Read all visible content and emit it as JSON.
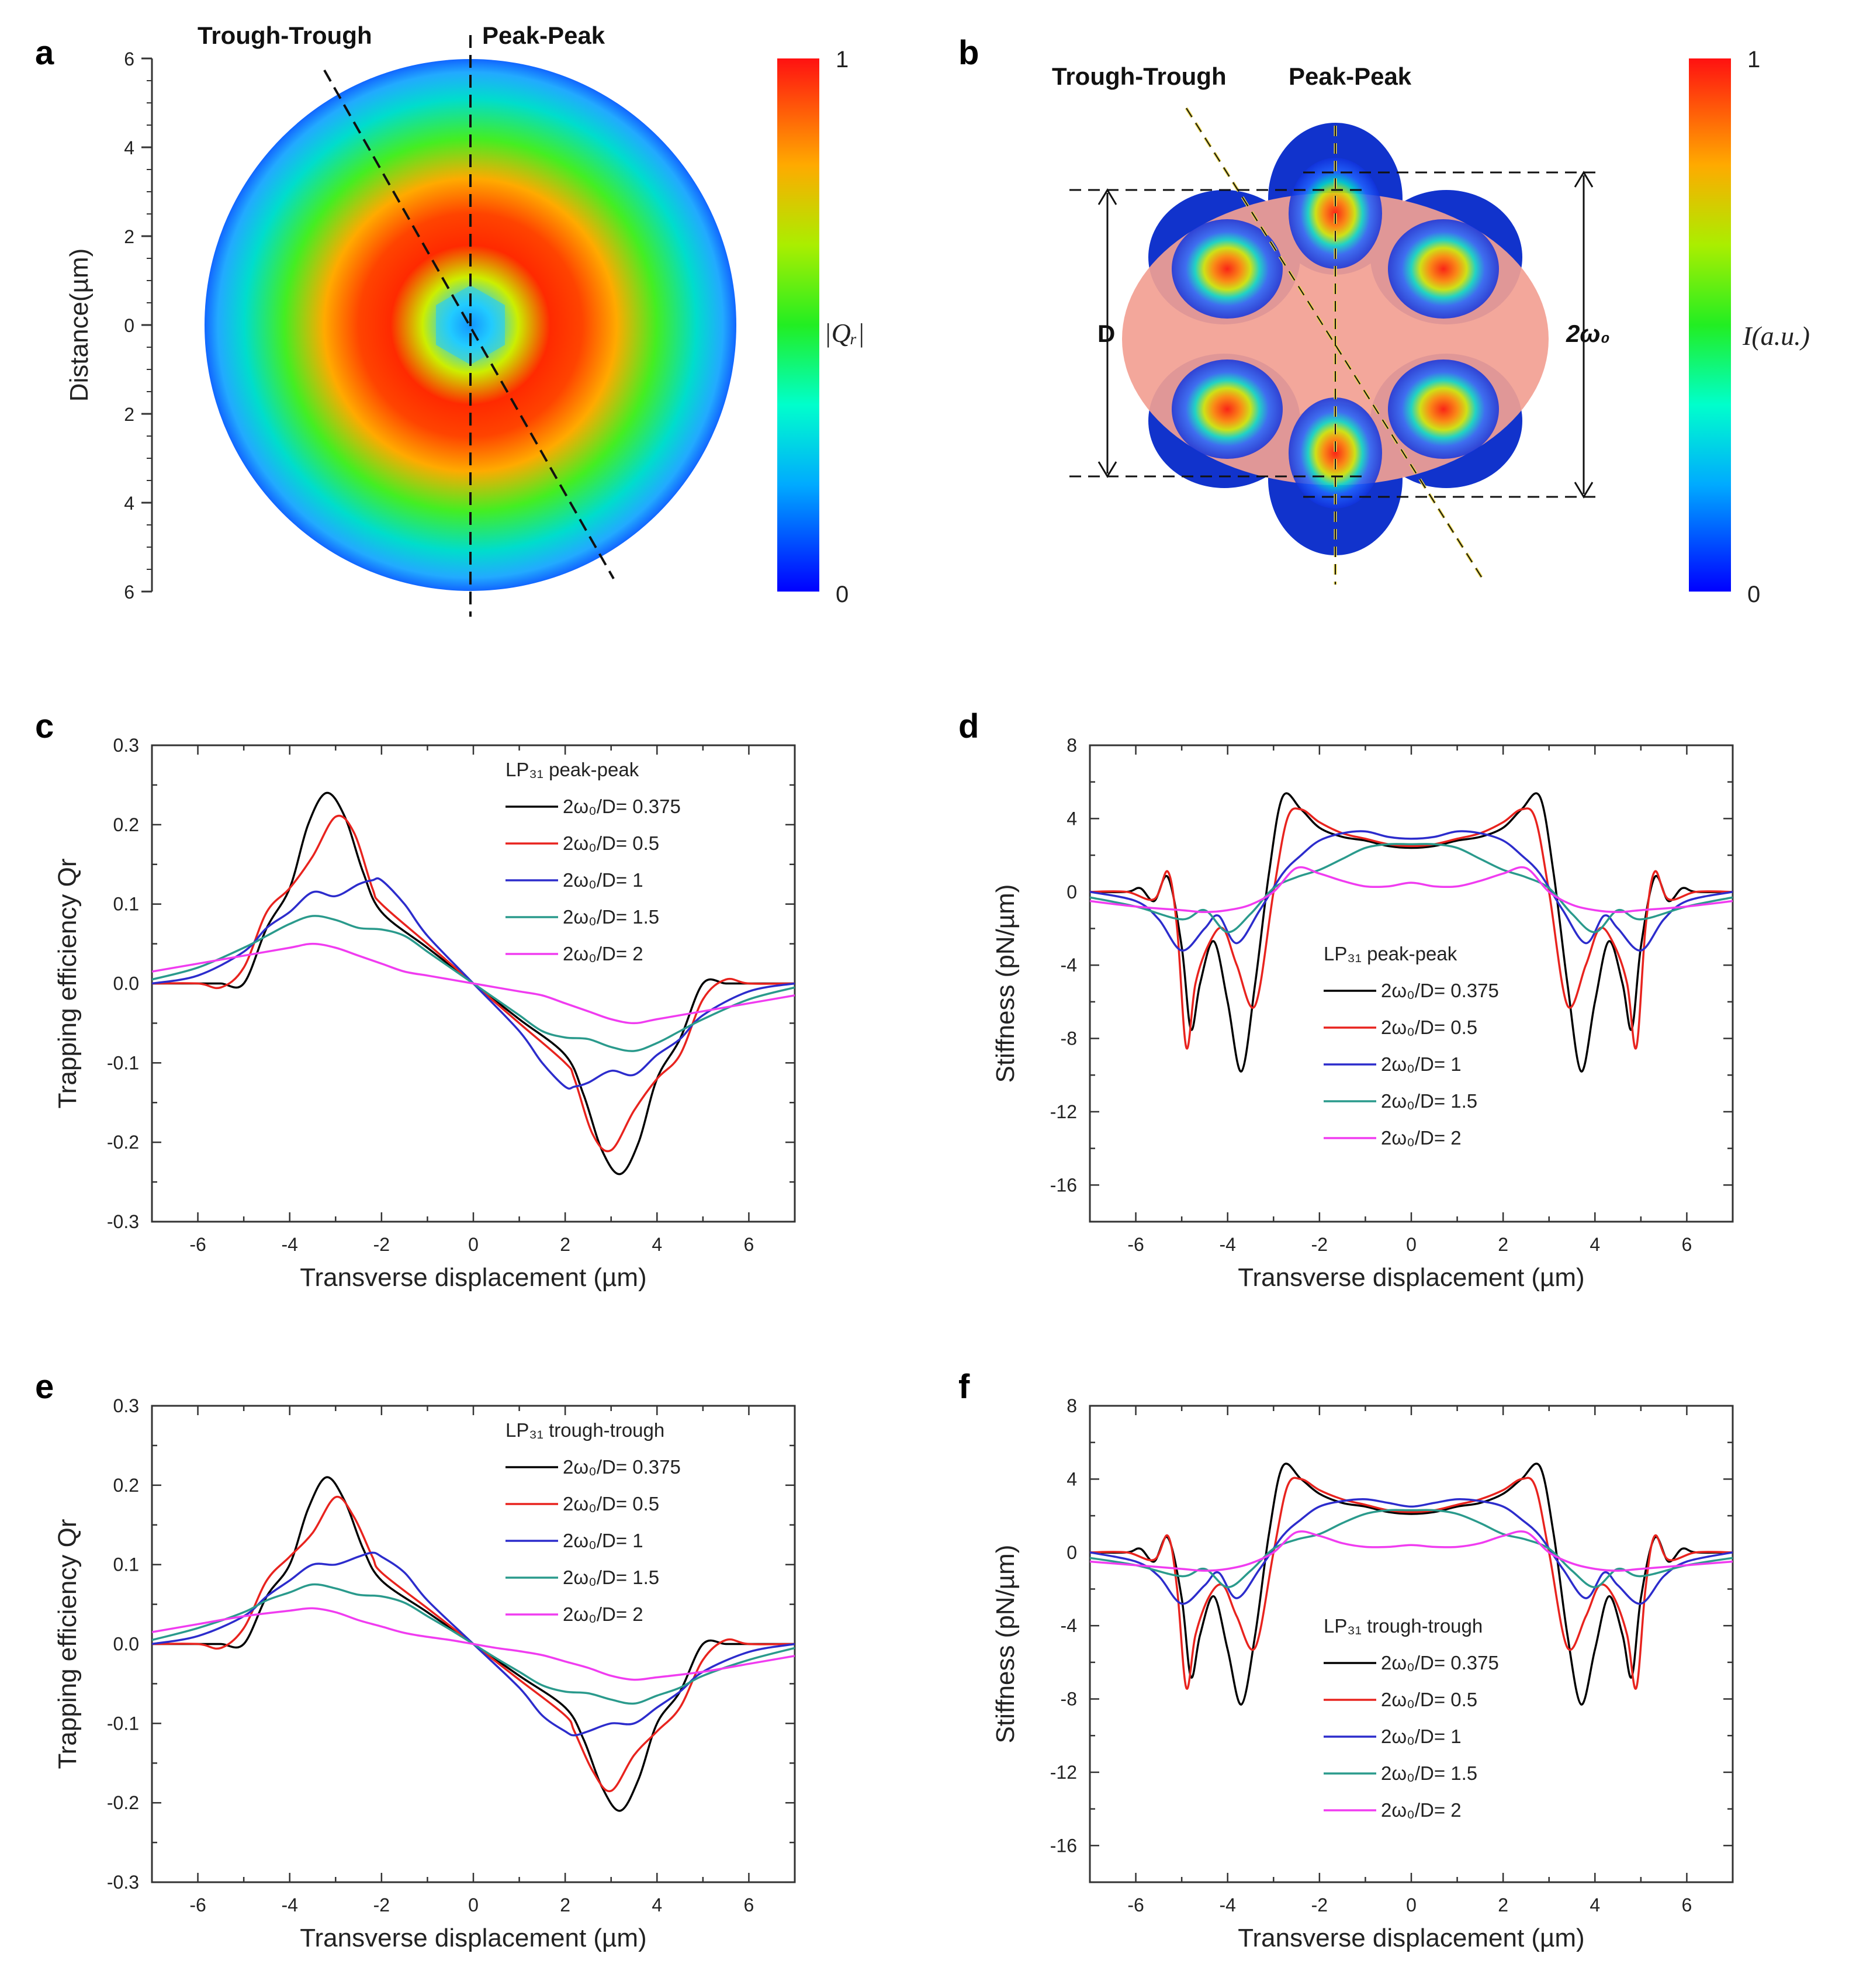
{
  "panels": {
    "a": {
      "letter": "a",
      "label_trough": "Trough-Trough",
      "label_peak": "Peak-Peak",
      "ylabel": "Distance(µm)",
      "yticks": [
        "6",
        "4",
        "2",
        "0",
        "2",
        "4",
        "6"
      ],
      "colorbar_label": "|Qᵣ|",
      "colorbar_max": "1",
      "colorbar_min": "0"
    },
    "b": {
      "letter": "b",
      "label_trough": "Trough-Trough",
      "label_peak": "Peak-Peak",
      "label_d": "D",
      "label_w": "2ω₀",
      "colorbar_label": "I(a.u.)",
      "colorbar_max": "1",
      "colorbar_min": "0"
    },
    "c": {
      "letter": "c"
    },
    "d": {
      "letter": "d"
    },
    "e": {
      "letter": "e"
    },
    "f": {
      "letter": "f"
    }
  },
  "colors": {
    "r0375": "#000000",
    "r05": "#e8231e",
    "r1": "#2c2ccc",
    "r15": "#2a9a8c",
    "r2": "#f03cf0"
  },
  "chart_data": [
    {
      "id": "c",
      "type": "line",
      "title": "",
      "xlabel": "Transverse displacement (µm)",
      "ylabel": "Trapping efficiency Qr",
      "xlim": [
        -7,
        7
      ],
      "ylim": [
        -0.3,
        0.3
      ],
      "xticks": [
        -6,
        -4,
        -2,
        0,
        2,
        4,
        6
      ],
      "yticks": [
        -0.3,
        -0.2,
        -0.1,
        0.0,
        0.1,
        0.2,
        0.3
      ],
      "ytick_labels": [
        "-0.3",
        "-0.2",
        "-0.1",
        "0.0",
        "0.1",
        "0.2",
        "0.3"
      ],
      "legend_title": "LP₃₁ peak-peak",
      "legend_position": "top-right",
      "series": [
        {
          "name": "2ω₀/D= 0.375",
          "x": [
            -7,
            -6,
            -5.5,
            -5,
            -4.5,
            -4,
            -3.6,
            -3.2,
            -2.8,
            -2.4,
            -2,
            -1,
            0
          ],
          "y": [
            0,
            0,
            0,
            0,
            0.07,
            0.12,
            0.2,
            0.24,
            0.21,
            0.14,
            0.09,
            0.045,
            0
          ]
        },
        {
          "name": "2ω₀/D= 0.5",
          "x": [
            -7,
            -6,
            -5.5,
            -5,
            -4.5,
            -4,
            -3.5,
            -3,
            -2.6,
            -2.2,
            -2,
            -1,
            0
          ],
          "y": [
            0,
            0,
            -0.005,
            0.02,
            0.09,
            0.12,
            0.16,
            0.21,
            0.19,
            0.12,
            0.1,
            0.05,
            0
          ]
        },
        {
          "name": "2ω₀/D= 1",
          "x": [
            -7,
            -6,
            -5,
            -4.5,
            -4,
            -3.5,
            -3,
            -2.5,
            -2.2,
            -2,
            -1.5,
            -1,
            0
          ],
          "y": [
            0,
            0.01,
            0.04,
            0.07,
            0.09,
            0.115,
            0.11,
            0.125,
            0.13,
            0.13,
            0.1,
            0.06,
            0
          ]
        },
        {
          "name": "2ω₀/D= 1.5",
          "x": [
            -7,
            -6,
            -5,
            -4.5,
            -4,
            -3.5,
            -3,
            -2.5,
            -2,
            -1.5,
            -1,
            -0.5,
            0
          ],
          "y": [
            0.005,
            0.02,
            0.045,
            0.06,
            0.075,
            0.085,
            0.08,
            0.07,
            0.068,
            0.06,
            0.04,
            0.02,
            0
          ]
        },
        {
          "name": "2ω₀/D= 2",
          "x": [
            -7,
            -6,
            -5,
            -4,
            -3.5,
            -3,
            -2.5,
            -2,
            -1.5,
            -1,
            -0.5,
            0
          ],
          "y": [
            0.015,
            0.025,
            0.035,
            0.045,
            0.05,
            0.045,
            0.035,
            0.025,
            0.015,
            0.01,
            0.005,
            0
          ]
        }
      ]
    },
    {
      "id": "d",
      "type": "line",
      "title": "",
      "xlabel": "Transverse displacement (µm)",
      "ylabel": "Stiffness (pN/µm)",
      "xlim": [
        -7,
        7
      ],
      "ylim": [
        -18,
        8
      ],
      "xticks": [
        -6,
        -4,
        -2,
        0,
        2,
        4,
        6
      ],
      "yticks": [
        -16,
        -12,
        -8,
        -4,
        0,
        4,
        8
      ],
      "ytick_labels": [
        "-16",
        "-12",
        "-8",
        "-4",
        "0",
        "4",
        "8"
      ],
      "legend_title": "LP₃₁ peak-peak",
      "legend_position": "center",
      "series": [
        {
          "name": "2ω₀/D= 0.375",
          "x": [
            -7,
            -6.2,
            -5.9,
            -5.6,
            -5.3,
            -5.0,
            -4.8,
            -4.6,
            -4.3,
            -4.0,
            -3.7,
            -3.4,
            -3.1,
            -2.8,
            -2.4,
            -2,
            -1.5,
            -1,
            -0.5,
            0
          ],
          "y": [
            0,
            0,
            0.2,
            -0.5,
            0.8,
            -3,
            -7.5,
            -5,
            -2.7,
            -6,
            -9.8,
            -5,
            1,
            5.2,
            4.5,
            3.5,
            3,
            2.8,
            2.5,
            2.4
          ]
        },
        {
          "name": "2ω₀/D= 0.5",
          "x": [
            -7,
            -6.2,
            -5.6,
            -5.3,
            -5.1,
            -4.9,
            -4.7,
            -4.4,
            -4.1,
            -3.8,
            -3.4,
            -3.0,
            -2.7,
            -2.4,
            -2,
            -1.5,
            -1,
            -0.5,
            0
          ],
          "y": [
            0,
            0,
            -0.4,
            1.1,
            -2,
            -8.5,
            -5,
            -2.8,
            -2,
            -4,
            -6.2,
            0,
            4,
            4.5,
            3.8,
            3.2,
            2.9,
            2.6,
            2.5
          ]
        },
        {
          "name": "2ω₀/D= 1",
          "x": [
            -7,
            -6,
            -5.5,
            -5,
            -4.5,
            -4.2,
            -3.8,
            -3.3,
            -2.8,
            -2.4,
            -2,
            -1.5,
            -1,
            -0.5,
            0
          ],
          "y": [
            0,
            -0.5,
            -1.5,
            -3.2,
            -2,
            -1.3,
            -2.8,
            -1,
            1,
            2,
            2.8,
            3.2,
            3.3,
            3.0,
            2.9
          ]
        },
        {
          "name": "2ω₀/D= 1.5",
          "x": [
            -7,
            -6,
            -5,
            -4.5,
            -4,
            -3.5,
            -3,
            -2.5,
            -2,
            -1.5,
            -1,
            -0.5,
            0
          ],
          "y": [
            -0.3,
            -0.8,
            -1.5,
            -1.0,
            -2.2,
            -1.2,
            0.2,
            0.8,
            1.2,
            1.8,
            2.4,
            2.6,
            2.6
          ]
        },
        {
          "name": "2ω₀/D= 2",
          "x": [
            -7,
            -6,
            -5,
            -4.5,
            -4,
            -3.5,
            -3,
            -2.5,
            -2,
            -1.5,
            -1,
            -0.5,
            0
          ],
          "y": [
            -0.5,
            -0.8,
            -1,
            -1.1,
            -1.0,
            -0.7,
            0,
            1.3,
            1.0,
            0.6,
            0.3,
            0.3,
            0.5
          ]
        }
      ]
    },
    {
      "id": "e",
      "type": "line",
      "title": "",
      "xlabel": "Transverse displacement (µm)",
      "ylabel": "Trapping efficiency Qr",
      "xlim": [
        -7,
        7
      ],
      "ylim": [
        -0.3,
        0.3
      ],
      "xticks": [
        -6,
        -4,
        -2,
        0,
        2,
        4,
        6
      ],
      "yticks": [
        -0.3,
        -0.2,
        -0.1,
        0.0,
        0.1,
        0.2,
        0.3
      ],
      "ytick_labels": [
        "-0.3",
        "-0.2",
        "-0.1",
        "0.0",
        "0.1",
        "0.2",
        "0.3"
      ],
      "legend_title": "LP₃₁ trough-trough",
      "legend_position": "top-right",
      "series": [
        {
          "name": "2ω₀/D= 0.375",
          "x": [
            -7,
            -6,
            -5.5,
            -5,
            -4.5,
            -4,
            -3.6,
            -3.2,
            -2.8,
            -2.4,
            -2,
            -1,
            0
          ],
          "y": [
            0,
            0,
            0,
            0,
            0.06,
            0.1,
            0.17,
            0.21,
            0.18,
            0.12,
            0.08,
            0.04,
            0
          ]
        },
        {
          "name": "2ω₀/D= 0.5",
          "x": [
            -7,
            -6,
            -5.5,
            -5,
            -4.5,
            -4,
            -3.5,
            -3,
            -2.6,
            -2.2,
            -2,
            -1,
            0
          ],
          "y": [
            0,
            0,
            -0.005,
            0.02,
            0.08,
            0.11,
            0.14,
            0.185,
            0.16,
            0.11,
            0.09,
            0.045,
            0
          ]
        },
        {
          "name": "2ω₀/D= 1",
          "x": [
            -7,
            -6,
            -5,
            -4.5,
            -4,
            -3.5,
            -3,
            -2.5,
            -2.2,
            -2,
            -1.5,
            -1,
            0
          ],
          "y": [
            0,
            0.01,
            0.035,
            0.06,
            0.08,
            0.1,
            0.1,
            0.11,
            0.115,
            0.11,
            0.09,
            0.055,
            0
          ]
        },
        {
          "name": "2ω₀/D= 1.5",
          "x": [
            -7,
            -6,
            -5,
            -4.5,
            -4,
            -3.5,
            -3,
            -2.5,
            -2,
            -1.5,
            -1,
            -0.5,
            0
          ],
          "y": [
            0.005,
            0.02,
            0.04,
            0.055,
            0.065,
            0.075,
            0.07,
            0.062,
            0.06,
            0.052,
            0.035,
            0.018,
            0
          ]
        },
        {
          "name": "2ω₀/D= 2",
          "x": [
            -7,
            -6,
            -5,
            -4,
            -3.5,
            -3,
            -2.5,
            -2,
            -1.5,
            -1,
            -0.5,
            0
          ],
          "y": [
            0.015,
            0.025,
            0.035,
            0.042,
            0.045,
            0.04,
            0.03,
            0.022,
            0.014,
            0.009,
            0.005,
            0
          ]
        }
      ]
    },
    {
      "id": "f",
      "type": "line",
      "title": "",
      "xlabel": "Transverse displacement (µm)",
      "ylabel": "Stiffness (pN/µm)",
      "xlim": [
        -7,
        7
      ],
      "ylim": [
        -18,
        8
      ],
      "xticks": [
        -6,
        -4,
        -2,
        0,
        2,
        4,
        6
      ],
      "yticks": [
        -16,
        -12,
        -8,
        -4,
        0,
        4,
        8
      ],
      "ytick_labels": [
        "-16",
        "-12",
        "-8",
        "-4",
        "0",
        "4",
        "8"
      ],
      "legend_title": "LP₃₁ trough-trough",
      "legend_position": "center",
      "series": [
        {
          "name": "2ω₀/D= 0.375",
          "x": [
            -7,
            -6.2,
            -5.9,
            -5.6,
            -5.3,
            -5.0,
            -4.8,
            -4.6,
            -4.3,
            -4.0,
            -3.7,
            -3.4,
            -3.1,
            -2.8,
            -2.4,
            -2,
            -1.5,
            -1,
            -0.5,
            0
          ],
          "y": [
            0,
            0,
            0.2,
            -0.5,
            0.8,
            -2.5,
            -6.8,
            -4.5,
            -2.4,
            -5.3,
            -8.3,
            -4.5,
            1,
            4.7,
            4.0,
            3.2,
            2.7,
            2.5,
            2.2,
            2.1
          ]
        },
        {
          "name": "2ω₀/D= 0.5",
          "x": [
            -7,
            -6.2,
            -5.6,
            -5.3,
            -5.1,
            -4.9,
            -4.7,
            -4.4,
            -4.1,
            -3.8,
            -3.4,
            -3.0,
            -2.7,
            -2.4,
            -2,
            -1.5,
            -1,
            -0.5,
            0
          ],
          "y": [
            0,
            0,
            -0.4,
            0.9,
            -2,
            -7.4,
            -4.5,
            -2.4,
            -1.8,
            -3.5,
            -5.2,
            0,
            3.6,
            4.0,
            3.4,
            2.9,
            2.6,
            2.3,
            2.2
          ]
        },
        {
          "name": "2ω₀/D= 1",
          "x": [
            -7,
            -6,
            -5.5,
            -5,
            -4.5,
            -4.2,
            -3.8,
            -3.3,
            -2.8,
            -2.4,
            -2,
            -1.5,
            -1,
            -0.5,
            0
          ],
          "y": [
            0,
            -0.5,
            -1.3,
            -2.8,
            -1.8,
            -1.1,
            -2.5,
            -0.9,
            0.9,
            1.8,
            2.5,
            2.8,
            2.9,
            2.7,
            2.5
          ]
        },
        {
          "name": "2ω₀/D= 1.5",
          "x": [
            -7,
            -6,
            -5,
            -4.5,
            -4,
            -3.5,
            -3,
            -2.5,
            -2,
            -1.5,
            -1,
            -0.5,
            0
          ],
          "y": [
            -0.3,
            -0.7,
            -1.3,
            -0.9,
            -1.9,
            -1.0,
            0.2,
            0.7,
            1.0,
            1.6,
            2.1,
            2.3,
            2.3
          ]
        },
        {
          "name": "2ω₀/D= 2",
          "x": [
            -7,
            -6,
            -5,
            -4.5,
            -4,
            -3.5,
            -3,
            -2.5,
            -2,
            -1.5,
            -1,
            -0.5,
            0
          ],
          "y": [
            -0.5,
            -0.7,
            -0.9,
            -1.0,
            -0.9,
            -0.6,
            0,
            1.1,
            0.9,
            0.5,
            0.3,
            0.3,
            0.4
          ]
        }
      ]
    }
  ]
}
